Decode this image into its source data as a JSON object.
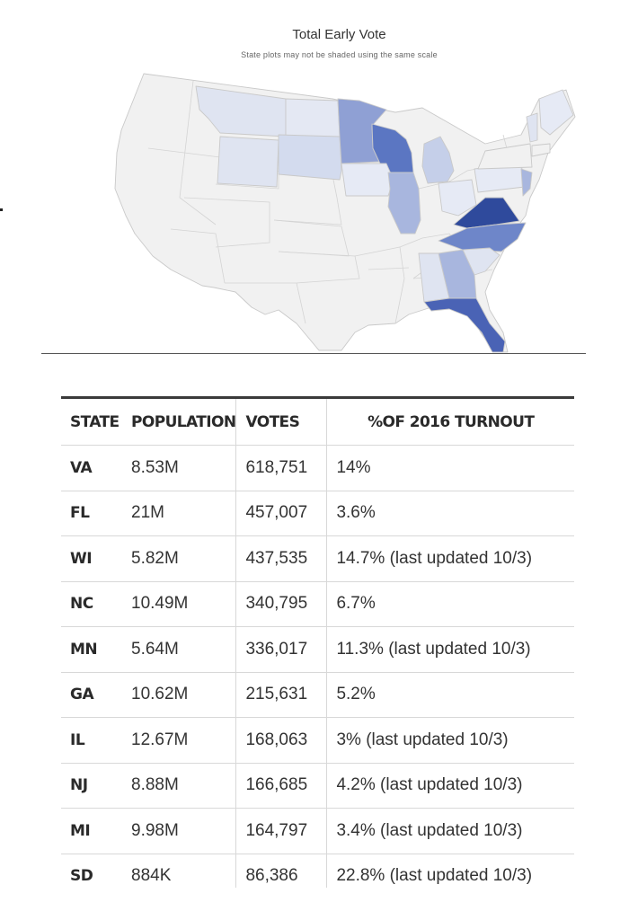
{
  "map": {
    "title": "Total Early Vote",
    "subtitle": "State plots may not be shaded using the same scale",
    "colors": {
      "base": "#f1f1f1",
      "border": "#c9c9c9",
      "light": "#dfe4f1",
      "light2": "#d3dbee",
      "mid": "#a8b6de",
      "mid2": "#8fa0d4",
      "strong": "#5b76c2",
      "darker": "#4a63b5",
      "darkest": "#2f4a9c"
    }
  },
  "table": {
    "headers": [
      "STATE",
      "POPULATION",
      "VOTES",
      "%OF 2016 TURNOUT"
    ],
    "rows": [
      [
        "VA",
        "8.53M",
        "618,751",
        "14%"
      ],
      [
        "FL",
        "21M",
        "457,007",
        "3.6%"
      ],
      [
        "WI",
        "5.82M",
        "437,535",
        "14.7% (last updated 10/3)"
      ],
      [
        "NC",
        "10.49M",
        "340,795",
        "6.7%"
      ],
      [
        "MN",
        "5.64M",
        "336,017",
        "11.3% (last updated 10/3)"
      ],
      [
        "GA",
        "10.62M",
        "215,631",
        "5.2%"
      ],
      [
        "IL",
        "12.67M",
        "168,063",
        "3% (last updated 10/3)"
      ],
      [
        "NJ",
        "8.88M",
        "166,685",
        "4.2% (last updated 10/3)"
      ],
      [
        "MI",
        "9.98M",
        "164,797",
        "3.4% (last updated 10/3)"
      ],
      [
        "SD",
        "884K",
        "86,386",
        "22.8% (last updated 10/3)"
      ]
    ]
  }
}
